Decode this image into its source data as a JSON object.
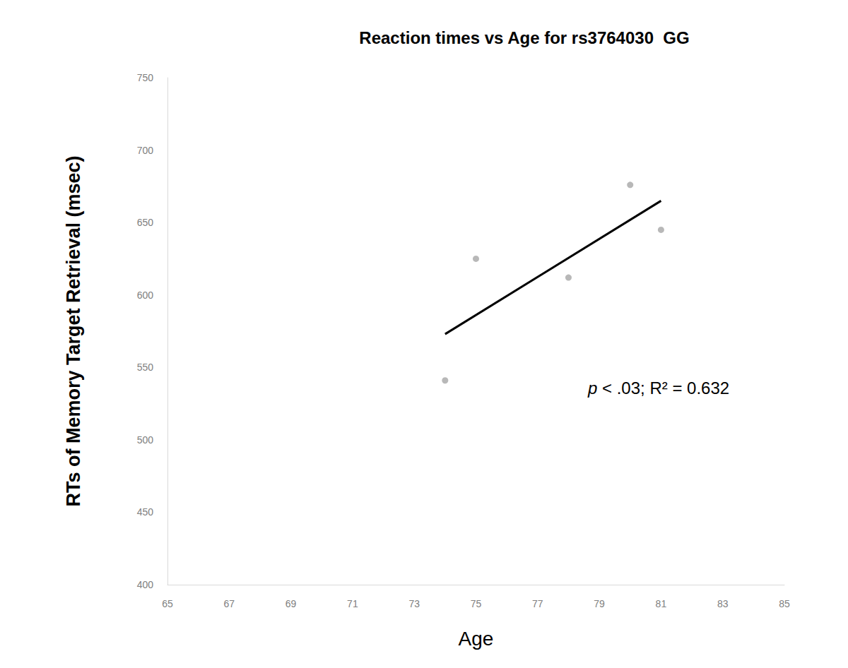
{
  "chart_data": {
    "type": "scatter",
    "title": "Reaction times vs Age for rs3764030  GG",
    "x_label": "Age",
    "y_label": "RTs of Memory Target Retrieval (msec)",
    "x": [
      74,
      75,
      78,
      80,
      81
    ],
    "values": [
      541,
      625,
      612,
      676,
      645
    ],
    "color": "#a6a6a6",
    "marker": "circle",
    "trendline": {
      "x": [
        74,
        81
      ],
      "values": [
        573,
        665
      ],
      "color": "#000000"
    },
    "annotation": "p < .03; R² = 0.632",
    "xlim": [
      65,
      85
    ],
    "xticks": [
      65,
      67,
      69,
      71,
      73,
      75,
      77,
      79,
      81,
      83,
      85
    ],
    "ylim": [
      400,
      750
    ],
    "yticks": [
      400,
      450,
      500,
      550,
      600,
      650,
      700,
      750
    ],
    "grid": false
  }
}
